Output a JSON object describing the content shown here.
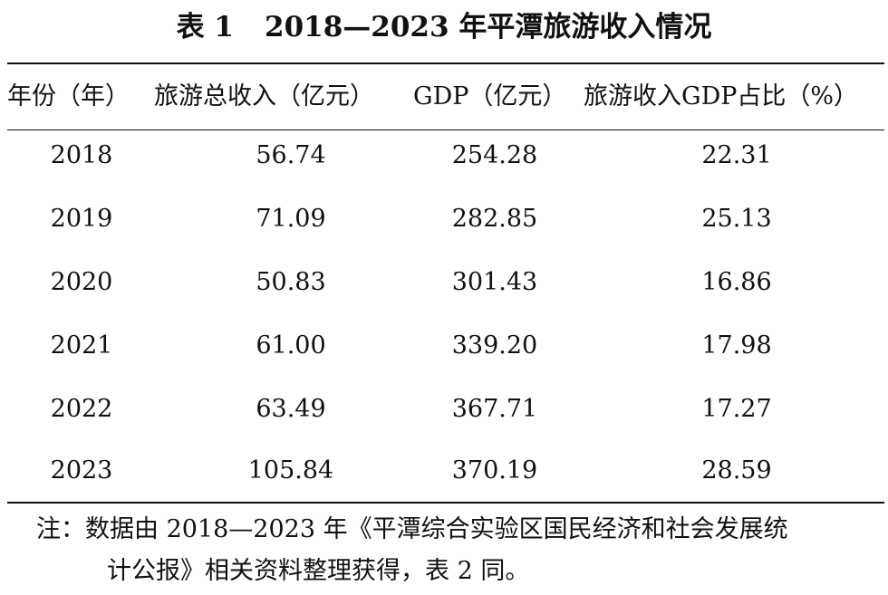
{
  "table": {
    "title_prefix": "表 1",
    "title_text": "2018—2023 年平潭旅游收入情况",
    "columns": [
      "年份（年）",
      "旅游总收入（亿元）",
      "GDP（亿元）",
      "旅游收入GDP占比（%）"
    ],
    "rows": [
      [
        "2018",
        "56.74",
        "254.28",
        "22.31"
      ],
      [
        "2019",
        "71.09",
        "282.85",
        "25.13"
      ],
      [
        "2020",
        "50.83",
        "301.43",
        "16.86"
      ],
      [
        "2021",
        "61.00",
        "339.20",
        "17.98"
      ],
      [
        "2022",
        "63.49",
        "367.71",
        "17.27"
      ],
      [
        "2023",
        "105.84",
        "370.19",
        "28.59"
      ]
    ],
    "note": {
      "label": "注：",
      "line1": "数据由 2018—2023 年《平潭综合实验区国民经济和社会发展统",
      "line2": "计公报》相关资料整理获得，表 2 同。"
    }
  }
}
